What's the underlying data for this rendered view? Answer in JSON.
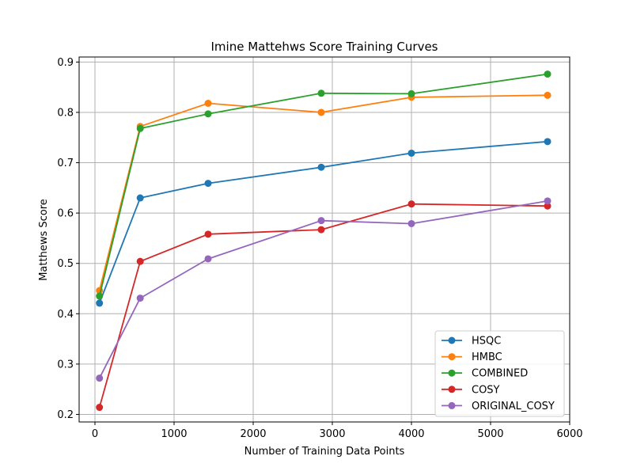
{
  "chart_data": {
    "type": "line",
    "title": "Imine Mattehws Score Training Curves",
    "xlabel": "Number of Training Data Points",
    "ylabel": "Matthews Score",
    "xlim": [
      -200,
      6000
    ],
    "ylim": [
      0.185,
      0.91
    ],
    "xticks": [
      0,
      1000,
      2000,
      3000,
      4000,
      5000,
      6000
    ],
    "xtick_labels": [
      "0",
      "1000",
      "2000",
      "3000",
      "4000",
      "5000",
      "6000"
    ],
    "yticks": [
      0.2,
      0.3,
      0.4,
      0.5,
      0.6,
      0.7,
      0.8,
      0.9
    ],
    "ytick_labels": [
      "0.2",
      "0.3",
      "0.4",
      "0.5",
      "0.6",
      "0.7",
      "0.8",
      "0.9"
    ],
    "grid": true,
    "legend_position": "lower-right",
    "x": [
      57,
      572,
      1430,
      2860,
      4000,
      5720
    ],
    "series": [
      {
        "name": "HSQC",
        "color": "#1f77b4",
        "values": [
          0.421,
          0.63,
          0.659,
          0.691,
          0.719,
          0.742
        ]
      },
      {
        "name": "HMBC",
        "color": "#ff7f0e",
        "values": [
          0.446,
          0.772,
          0.818,
          0.8,
          0.83,
          0.834
        ]
      },
      {
        "name": "COMBINED",
        "color": "#2ca02c",
        "values": [
          0.435,
          0.768,
          0.797,
          0.838,
          0.837,
          0.876
        ]
      },
      {
        "name": "COSY",
        "color": "#d62728",
        "values": [
          0.214,
          0.504,
          0.558,
          0.567,
          0.618,
          0.614
        ]
      },
      {
        "name": "ORIGINAL_COSY",
        "color": "#9467bd",
        "values": [
          0.272,
          0.431,
          0.509,
          0.585,
          0.579,
          0.624
        ]
      }
    ]
  }
}
